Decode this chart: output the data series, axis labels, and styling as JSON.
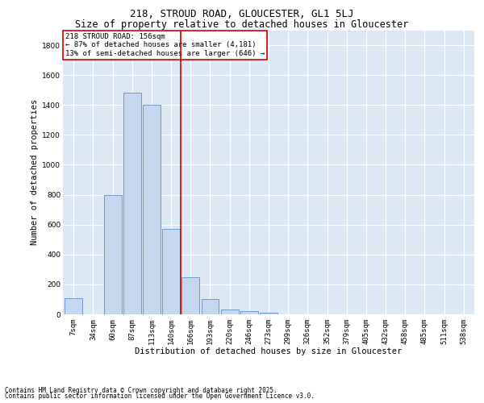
{
  "title_line1": "218, STROUD ROAD, GLOUCESTER, GL1 5LJ",
  "title_line2": "Size of property relative to detached houses in Gloucester",
  "xlabel": "Distribution of detached houses by size in Gloucester",
  "ylabel": "Number of detached properties",
  "bar_labels": [
    "7sqm",
    "34sqm",
    "60sqm",
    "87sqm",
    "113sqm",
    "140sqm",
    "166sqm",
    "193sqm",
    "220sqm",
    "246sqm",
    "273sqm",
    "299sqm",
    "326sqm",
    "352sqm",
    "379sqm",
    "405sqm",
    "432sqm",
    "458sqm",
    "485sqm",
    "511sqm",
    "538sqm"
  ],
  "bar_values": [
    110,
    0,
    800,
    1480,
    1400,
    570,
    250,
    105,
    35,
    20,
    10,
    0,
    0,
    0,
    0,
    0,
    0,
    0,
    0,
    0,
    0
  ],
  "bar_color": "#c5d8f0",
  "bar_edge_color": "#5b8dc9",
  "vline_x": 6,
  "vline_color": "#cc0000",
  "ylim": [
    0,
    1900
  ],
  "yticks": [
    0,
    200,
    400,
    600,
    800,
    1000,
    1200,
    1400,
    1600,
    1800
  ],
  "annotation_text": "218 STROUD ROAD: 156sqm\n← 87% of detached houses are smaller (4,181)\n13% of semi-detached houses are larger (646) →",
  "annotation_box_color": "#ffffff",
  "annotation_edge_color": "#cc0000",
  "footnote_line1": "Contains HM Land Registry data © Crown copyright and database right 2025.",
  "footnote_line2": "Contains public sector information licensed under the Open Government Licence v3.0.",
  "bg_color": "#dce9f5",
  "fig_bg_color": "#ffffff",
  "title_fontsize": 9,
  "subtitle_fontsize": 8.5,
  "tick_fontsize": 6.5,
  "ylabel_fontsize": 7.5,
  "xlabel_fontsize": 7.5,
  "annot_fontsize": 6.5,
  "footnote_fontsize": 5.5
}
